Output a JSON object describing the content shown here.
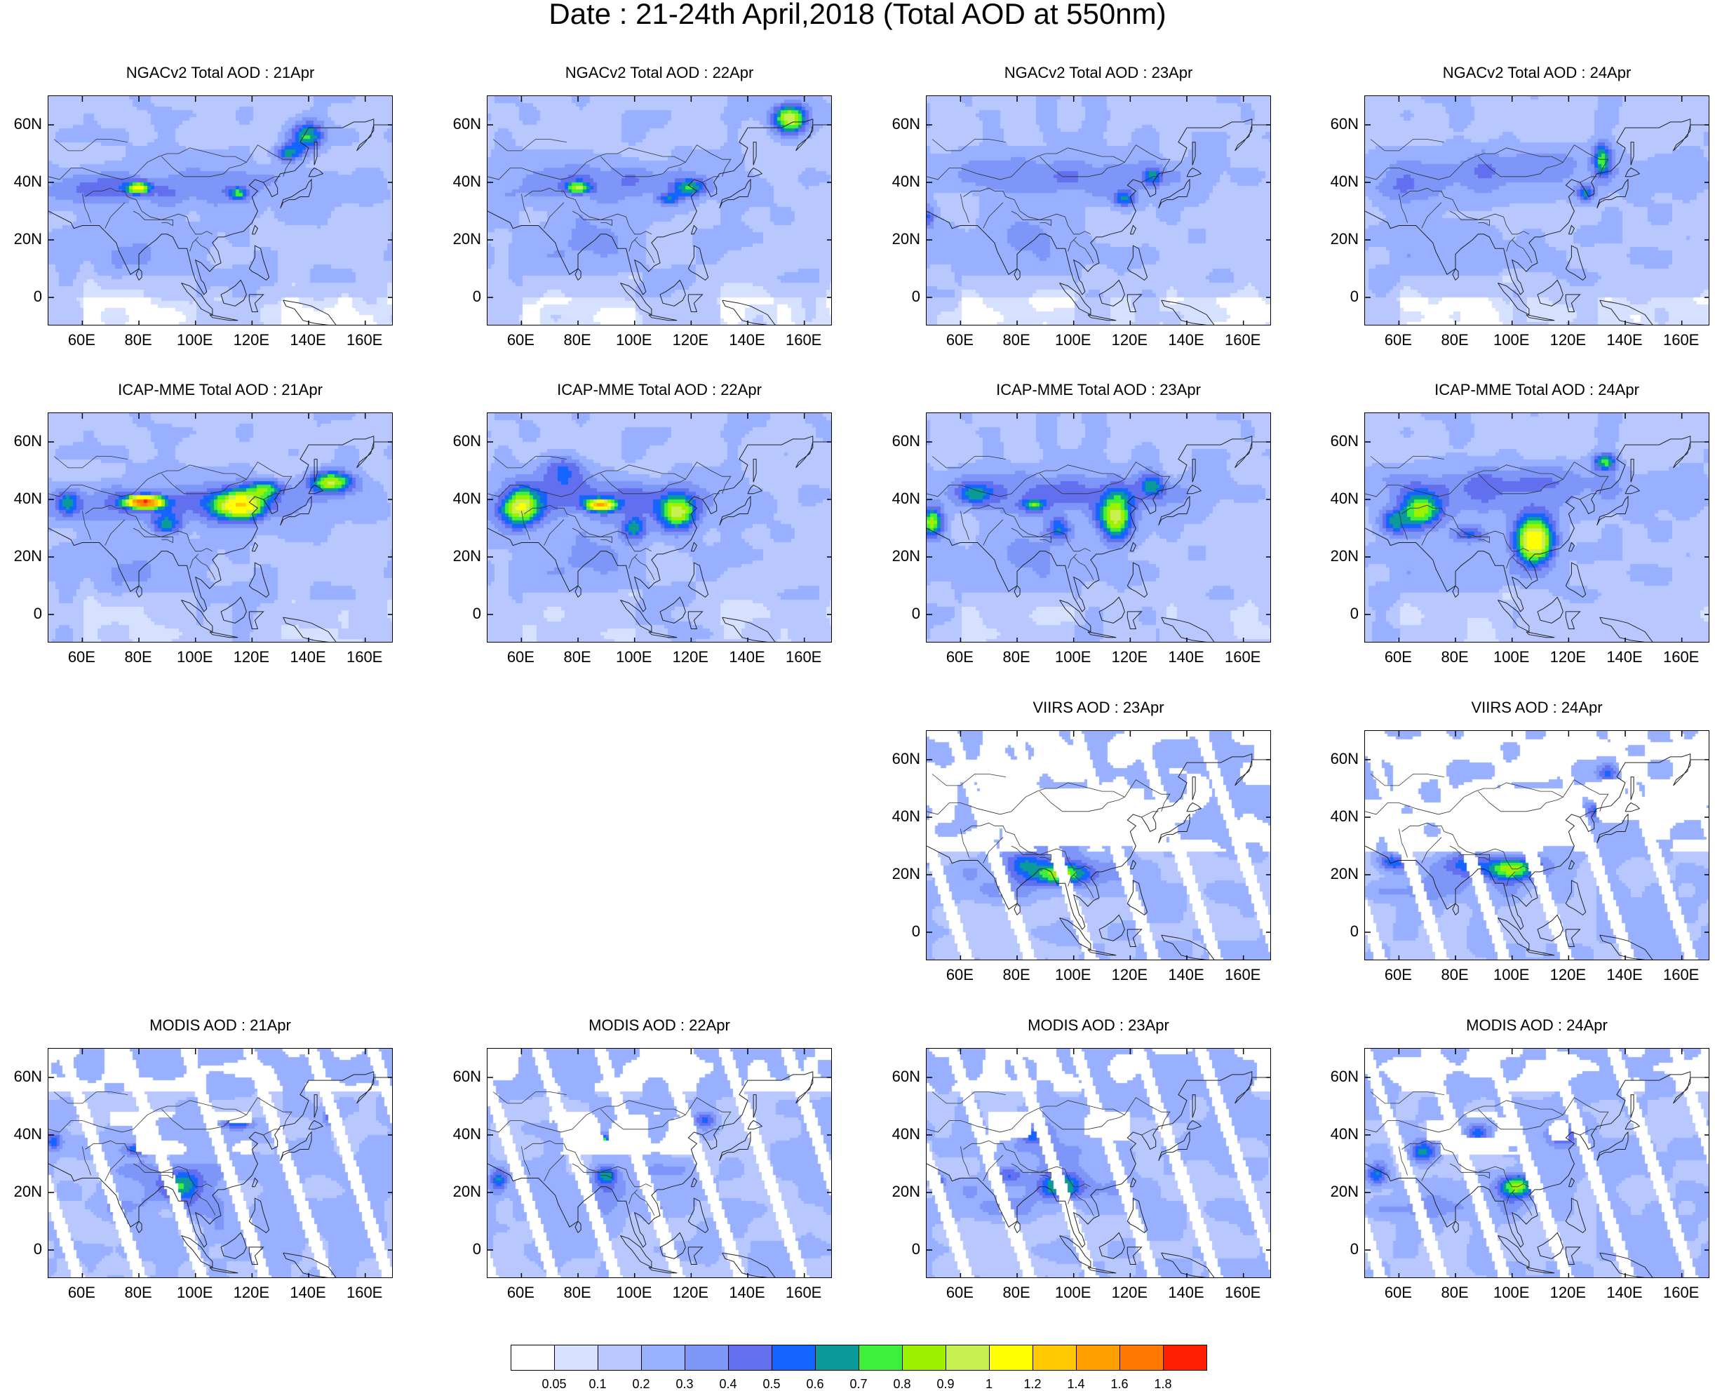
{
  "title": "Date : 21-24th April,2018 (Total AOD at 550nm)",
  "axis_ticks": {
    "x": [
      "60E",
      "80E",
      "100E",
      "120E",
      "140E",
      "160E"
    ],
    "y": [
      "60N",
      "40N",
      "20N",
      "0"
    ]
  },
  "panels": [
    {
      "title": "NGACv2 Total AOD : 21Apr",
      "model": "ngac",
      "day": 21,
      "row": 0,
      "col": 0
    },
    {
      "title": "NGACv2 Total AOD : 22Apr",
      "model": "ngac",
      "day": 22,
      "row": 0,
      "col": 1
    },
    {
      "title": "NGACv2 Total AOD : 23Apr",
      "model": "ngac",
      "day": 23,
      "row": 0,
      "col": 2
    },
    {
      "title": "NGACv2 Total AOD : 24Apr",
      "model": "ngac",
      "day": 24,
      "row": 0,
      "col": 3
    },
    {
      "title": "ICAP-MME Total AOD : 21Apr",
      "model": "icap",
      "day": 21,
      "row": 1,
      "col": 0
    },
    {
      "title": "ICAP-MME Total AOD : 22Apr",
      "model": "icap",
      "day": 22,
      "row": 1,
      "col": 1
    },
    {
      "title": "ICAP-MME Total AOD : 23Apr",
      "model": "icap",
      "day": 23,
      "row": 1,
      "col": 2
    },
    {
      "title": "ICAP-MME Total AOD : 24Apr",
      "model": "icap",
      "day": 24,
      "row": 1,
      "col": 3
    },
    {
      "title": "VIIRS AOD : 23Apr",
      "model": "viirs",
      "day": 23,
      "row": 2,
      "col": 2
    },
    {
      "title": "VIIRS AOD : 24Apr",
      "model": "viirs",
      "day": 24,
      "row": 2,
      "col": 3
    },
    {
      "title": "MODIS AOD : 21Apr",
      "model": "modis",
      "day": 21,
      "row": 3,
      "col": 0
    },
    {
      "title": "MODIS AOD : 22Apr",
      "model": "modis",
      "day": 22,
      "row": 3,
      "col": 1
    },
    {
      "title": "MODIS AOD : 23Apr",
      "model": "modis",
      "day": 23,
      "row": 3,
      "col": 2
    },
    {
      "title": "MODIS AOD : 24Apr",
      "model": "modis",
      "day": 24,
      "row": 3,
      "col": 3
    }
  ],
  "colorbar": {
    "labels": [
      "0.05",
      "0.1",
      "0.2",
      "0.3",
      "0.4",
      "0.5",
      "0.6",
      "0.7",
      "0.8",
      "0.9",
      "1",
      "1.2",
      "1.4",
      "1.6",
      "1.8"
    ],
    "colors": [
      "#ffffff",
      "#d6e0ff",
      "#b8c8ff",
      "#98b0ff",
      "#7e96f8",
      "#6270f0",
      "#1464ff",
      "#0a9a9a",
      "#3cf03c",
      "#9cf000",
      "#c8f050",
      "#ffff00",
      "#ffc800",
      "#ffa000",
      "#ff7800",
      "#ff1e00"
    ]
  }
}
